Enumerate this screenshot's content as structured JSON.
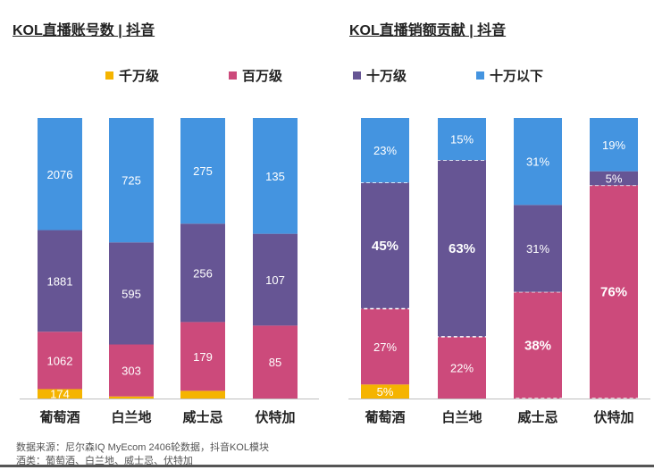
{
  "colors": {
    "qianwan": "#f5b400",
    "baiwan": "#cc4a7b",
    "shiwan": "#665594",
    "shiwanyixia": "#4494e0"
  },
  "legend": [
    {
      "label": "千万级",
      "color": "#f5b400"
    },
    {
      "label": "百万级",
      "color": "#cc4a7b"
    },
    {
      "label": "十万级",
      "color": "#665594"
    },
    {
      "label": "十万以下",
      "color": "#4494e0"
    }
  ],
  "source_lines": [
    "数据来源：尼尔森IQ MyEcom 2406轮数据，抖音KOL模块",
    "酒类：葡萄酒、白兰地、威士忌、伏特加"
  ],
  "chart_data": [
    {
      "type": "bar",
      "stacked": true,
      "title": "KOL直播账号数 | 抖音",
      "categories": [
        "葡萄酒",
        "白兰地",
        "威士忌",
        "伏特加"
      ],
      "series": [
        {
          "name": "千万级",
          "color": "#f5b400",
          "values": [
            174,
            12,
            20,
            0
          ],
          "labels": [
            "174",
            "",
            "",
            ""
          ]
        },
        {
          "name": "百万级",
          "color": "#cc4a7b",
          "values": [
            1062,
            303,
            179,
            85
          ],
          "labels": [
            "1062",
            "303",
            "179",
            "85"
          ]
        },
        {
          "name": "十万级",
          "color": "#665594",
          "values": [
            1881,
            595,
            256,
            107
          ],
          "labels": [
            "1881",
            "595",
            "256",
            "107"
          ]
        },
        {
          "name": "十万以下",
          "color": "#4494e0",
          "values": [
            2076,
            725,
            275,
            135
          ],
          "labels": [
            "2076",
            "725",
            "275",
            "135"
          ]
        }
      ]
    },
    {
      "type": "bar",
      "stacked": true,
      "percent": true,
      "title": "KOL直播销额贡献 | 抖音",
      "categories": [
        "葡萄酒",
        "白兰地",
        "威士忌",
        "伏特加"
      ],
      "series": [
        {
          "name": "千万级",
          "color": "#f5b400",
          "values": [
            5,
            0,
            0,
            0
          ],
          "labels": [
            "5%",
            "",
            "",
            ""
          ]
        },
        {
          "name": "百万级",
          "color": "#cc4a7b",
          "values": [
            27,
            22,
            38,
            76
          ],
          "labels": [
            "27%",
            "22%",
            "38%",
            "76%"
          ]
        },
        {
          "name": "十万级",
          "color": "#665594",
          "values": [
            45,
            63,
            31,
            5
          ],
          "labels": [
            "45%",
            "63%",
            "31%",
            "5%"
          ]
        },
        {
          "name": "十万以下",
          "color": "#4494e0",
          "values": [
            23,
            15,
            31,
            19
          ],
          "labels": [
            "23%",
            "15%",
            "31%",
            "19%"
          ]
        }
      ],
      "highlighted": [
        {
          "category": "葡萄酒",
          "series": "十万级"
        },
        {
          "category": "白兰地",
          "series": "十万级"
        },
        {
          "category": "威士忌",
          "series": "百万级"
        },
        {
          "category": "伏特加",
          "series": "百万级"
        }
      ]
    }
  ]
}
